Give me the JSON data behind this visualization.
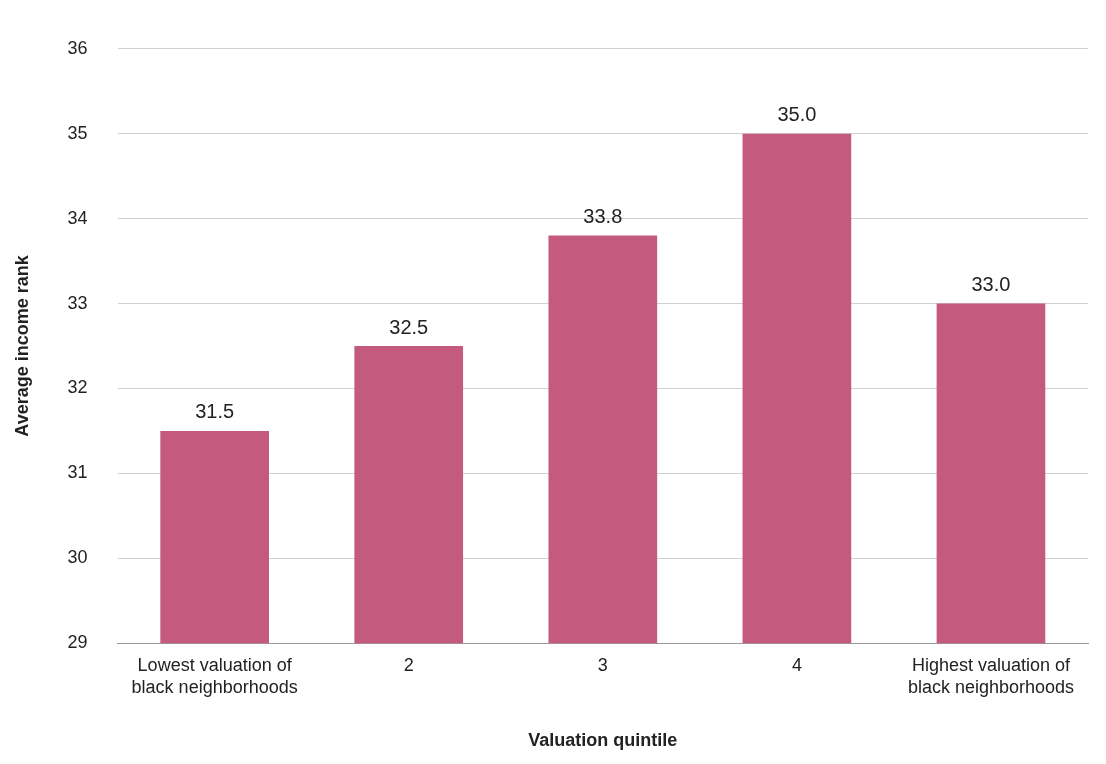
{
  "chart_data": {
    "type": "bar",
    "categories": [
      "Lowest valuation of black neighborhoods",
      "2",
      "3",
      "4",
      "Highest valuation of black neighborhoods"
    ],
    "values": [
      31.5,
      32.5,
      33.8,
      35.0,
      33.0
    ],
    "value_labels": [
      "31.5",
      "32.5",
      "33.8",
      "35.0",
      "33.0"
    ],
    "color": "#c55a7f",
    "xlabel": "Valuation quintile",
    "ylabel": "Average income rank",
    "ylim": [
      29,
      36
    ],
    "yticks": [
      29,
      30,
      31,
      32,
      33,
      34,
      35,
      36
    ],
    "grid": "y",
    "legend": false
  }
}
